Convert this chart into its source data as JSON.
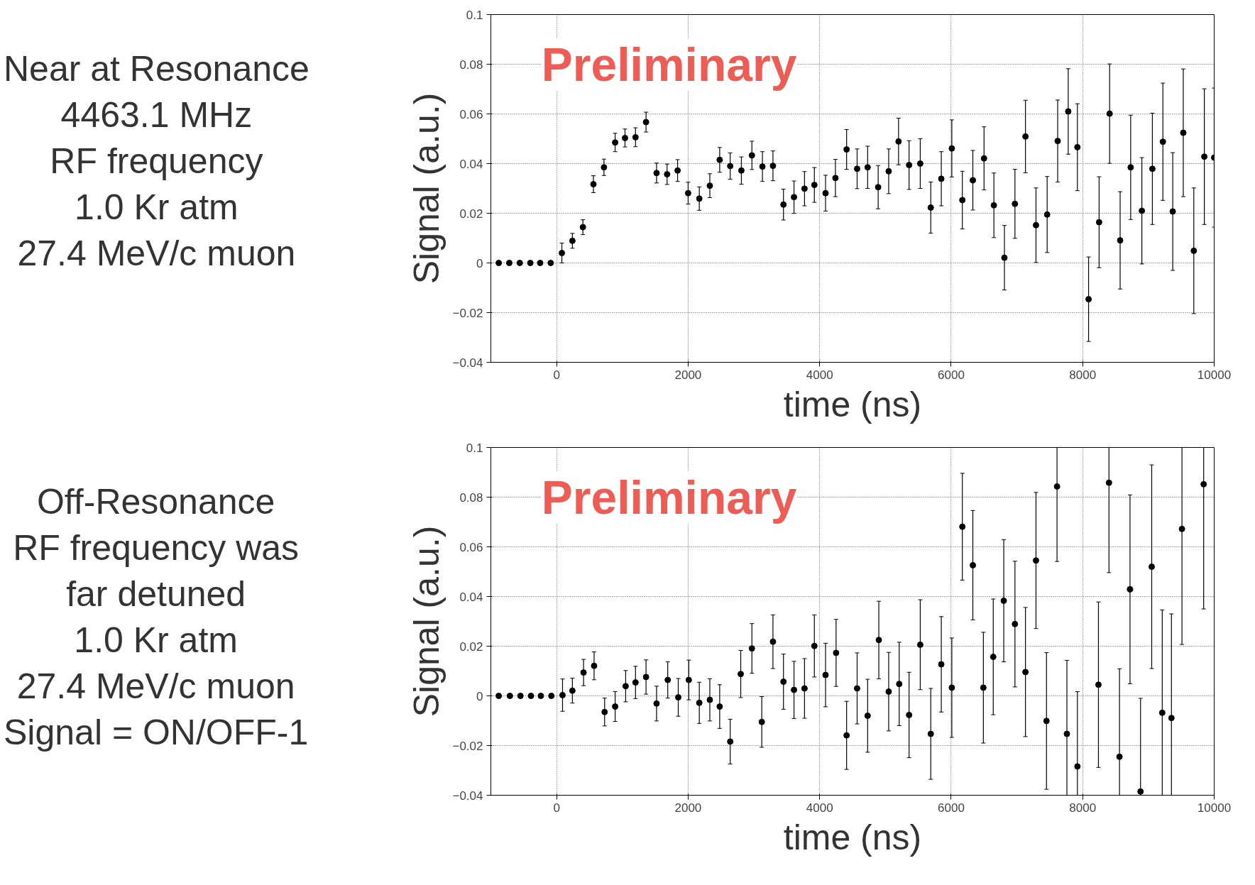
{
  "chart_data": [
    {
      "type": "scatter",
      "xlabel": "time (ns)",
      "ylabel": "Signal (a.u.)",
      "marker": "circle",
      "grid": true,
      "annotations": [
        "Preliminary",
        "Near at Resonance",
        "4463.1 MHz",
        "RF frequency",
        "1.0 Kr atm",
        "27.4 MeV/c muon"
      ],
      "xlim": [
        -1000,
        10000
      ],
      "ylim": [
        -0.04,
        0.1
      ],
      "xticks": [
        0,
        2000,
        4000,
        6000,
        8000,
        10000
      ],
      "yticks": [
        -0.04,
        -0.02,
        0,
        0.02,
        0.04,
        0.06,
        0.08,
        0.1
      ],
      "series": [
        {
          "color": "#000000",
          "x": [
            -880,
            -720,
            -560,
            -400,
            -250,
            -90,
            80,
            240,
            400,
            560,
            720,
            890,
            1040,
            1200,
            1360,
            1520,
            1680,
            1840,
            2000,
            2170,
            2330,
            2480,
            2640,
            2810,
            2970,
            3130,
            3290,
            3450,
            3610,
            3770,
            3920,
            4090,
            4240,
            4410,
            4570,
            4730,
            4890,
            5050,
            5200,
            5360,
            5530,
            5690,
            5850,
            6010,
            6170,
            6330,
            6500,
            6650,
            6810,
            6970,
            7130,
            7290,
            7460,
            7620,
            7780,
            7920,
            8090,
            8250,
            8410,
            8570,
            8730,
            8900,
            9060,
            9220,
            9370,
            9530,
            9690,
            9850,
            10000
          ],
          "values": [
            0,
            0,
            0,
            0,
            0,
            0,
            0.004,
            0.0089,
            0.0144,
            0.0317,
            0.0385,
            0.0485,
            0.0503,
            0.0506,
            0.0567,
            0.0362,
            0.0357,
            0.0372,
            0.0281,
            0.0259,
            0.0311,
            0.0415,
            0.039,
            0.0372,
            0.0433,
            0.0388,
            0.0391,
            0.0235,
            0.0265,
            0.0299,
            0.0314,
            0.0281,
            0.0342,
            0.0457,
            0.0379,
            0.0385,
            0.0305,
            0.0369,
            0.0489,
            0.0394,
            0.04,
            0.0223,
            0.0339,
            0.0461,
            0.0253,
            0.0333,
            0.0421,
            0.0232,
            0.0021,
            0.0238,
            0.0509,
            0.0152,
            0.0195,
            0.0491,
            0.061,
            0.0466,
            -0.0146,
            0.0164,
            0.0601,
            0.0091,
            0.0385,
            0.021,
            0.0379,
            0.0488,
            0.0207,
            0.0524,
            0.0049,
            0.0428,
            0.0424
          ],
          "errors": [
            null,
            null,
            null,
            null,
            null,
            null,
            0.004,
            0.003,
            0.003,
            0.0034,
            0.0033,
            0.0037,
            0.0036,
            0.0038,
            0.004,
            0.004,
            0.0041,
            0.0044,
            0.0044,
            0.0047,
            0.0048,
            0.005,
            0.0053,
            0.0055,
            0.0057,
            0.006,
            0.006,
            0.0062,
            0.0065,
            0.0069,
            0.007,
            0.0072,
            0.0075,
            0.008,
            0.008,
            0.0085,
            0.0087,
            0.009,
            0.0094,
            0.0098,
            0.01,
            0.0103,
            0.0109,
            0.0115,
            0.0116,
            0.012,
            0.0127,
            0.013,
            0.013,
            0.0139,
            0.0146,
            0.015,
            0.0153,
            0.0165,
            0.0172,
            0.0175,
            0.017,
            0.0183,
            0.02,
            0.0196,
            0.021,
            0.0214,
            0.0224,
            0.0236,
            0.0237,
            0.0257,
            0.0253,
            0.0273,
            0.028
          ]
        }
      ]
    },
    {
      "type": "scatter",
      "xlabel": "time (ns)",
      "ylabel": "Signal (a.u.)",
      "marker": "circle",
      "grid": true,
      "annotations": [
        "Preliminary",
        "Off-Resonance",
        "RF frequency was",
        "far detuned",
        "1.0 Kr atm",
        "27.4 MeV/c muon",
        "Signal = ON/OFF-1"
      ],
      "xlim": [
        -1000,
        10000
      ],
      "ylim": [
        -0.04,
        0.1
      ],
      "xticks": [
        0,
        2000,
        4000,
        6000,
        8000,
        10000
      ],
      "yticks": [
        -0.04,
        -0.02,
        0,
        0.02,
        0.04,
        0.06,
        0.08,
        0.1
      ],
      "series": [
        {
          "color": "#000000",
          "x": [
            -880,
            -710,
            -550,
            -390,
            -240,
            -80,
            90,
            240,
            410,
            570,
            730,
            890,
            1050,
            1200,
            1360,
            1520,
            1690,
            1850,
            2010,
            2170,
            2330,
            2480,
            2640,
            2800,
            2970,
            3120,
            3290,
            3450,
            3610,
            3770,
            3920,
            4090,
            4250,
            4410,
            4570,
            4730,
            4900,
            5050,
            5210,
            5360,
            5530,
            5690,
            5850,
            6010,
            6170,
            6330,
            6490,
            6640,
            6800,
            6970,
            7130,
            7290,
            7450,
            7610,
            7760,
            7920,
            8240,
            8400,
            8560,
            8720,
            8880,
            9050,
            9210,
            9350,
            9510,
            9840
          ],
          "values": [
            0,
            0,
            0,
            0,
            0,
            0,
            0.0003,
            0.0021,
            0.0094,
            0.0121,
            -0.0065,
            -0.0043,
            0.0039,
            0.0054,
            0.0076,
            -0.0031,
            0.0064,
            -0.0006,
            0.0064,
            -0.0028,
            -0.0016,
            -0.0043,
            -0.0184,
            0.0088,
            0.0191,
            -0.0105,
            0.0218,
            0.0057,
            0.0024,
            0.003,
            0.0201,
            0.0084,
            0.0173,
            -0.0159,
            0.003,
            -0.008,
            0.0225,
            0.0017,
            0.0048,
            -0.0077,
            0.0206,
            -0.0153,
            0.0127,
            0.0033,
            0.0681,
            0.0526,
            0.0033,
            0.0157,
            0.0383,
            0.0289,
            0.0096,
            0.0545,
            -0.0101,
            0.0843,
            -0.0153,
            -0.0284,
            0.0045,
            0.0858,
            -0.0245,
            0.0429,
            -0.0385,
            0.052,
            -0.0068,
            -0.0089,
            0.0672,
            0.0852
          ],
          "errors": [
            null,
            null,
            null,
            null,
            null,
            null,
            0.0065,
            0.005,
            0.0053,
            0.0056,
            0.0056,
            0.006,
            0.0063,
            0.0065,
            0.0069,
            0.007,
            0.0073,
            0.0076,
            0.008,
            0.0083,
            0.0085,
            0.0088,
            0.009,
            0.0095,
            0.01,
            0.0102,
            0.0108,
            0.0111,
            0.0115,
            0.012,
            0.0125,
            0.0128,
            0.0135,
            0.0137,
            0.0143,
            0.0147,
            0.0156,
            0.0158,
            0.0168,
            0.0172,
            0.0181,
            0.0183,
            0.0192,
            0.02,
            0.0215,
            0.022,
            0.0223,
            0.0233,
            0.0246,
            0.0253,
            0.026,
            0.0274,
            0.0275,
            [
              0.0541,
              0.1
            ],
            [
              -0.04,
              0.0143
            ],
            [
              -0.04,
              0.0017
            ],
            0.0333,
            [
              0.0496,
              0.1
            ],
            [
              -0.04,
              0.0109
            ],
            0.038,
            [
              -0.04,
              -0.001
            ],
            0.041,
            [
              -0.04,
              0.0346
            ],
            [
              -0.04,
              0.033
            ],
            [
              0.0207,
              0.1
            ],
            [
              0.035,
              0.1
            ]
          ]
        }
      ]
    }
  ]
}
